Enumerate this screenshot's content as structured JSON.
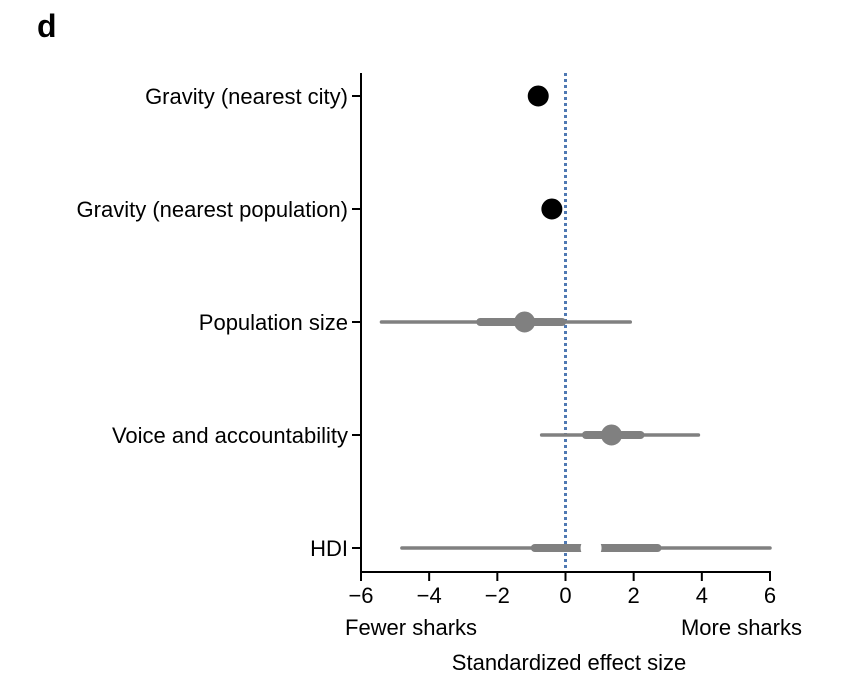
{
  "panel_label": "d",
  "chart_data": {
    "type": "forest",
    "xlabel": "Standardized effect size",
    "x_annotations": {
      "left": "Fewer sharks",
      "right": "More sharks"
    },
    "xlim": [
      -6,
      6
    ],
    "x_ticks": [
      -6,
      -4,
      -2,
      0,
      2,
      4,
      6
    ],
    "x_tick_labels": [
      "−6",
      "−4",
      "−2",
      "0",
      "2",
      "4",
      "6"
    ],
    "reference_line": 0,
    "reference_line_color": "#4f79b3",
    "rows": [
      {
        "label": "Gravity (nearest city)",
        "estimate": -0.8,
        "ci_inner": [
          -0.95,
          -0.65
        ],
        "ci_outer": [
          -1.0,
          -0.6
        ],
        "color": "#000000",
        "filled": true
      },
      {
        "label": "Gravity (nearest population)",
        "estimate": -0.4,
        "ci_inner": [
          -0.5,
          -0.3
        ],
        "ci_outer": [
          -0.55,
          -0.25
        ],
        "color": "#000000",
        "filled": true
      },
      {
        "label": "Population size",
        "estimate": -1.2,
        "ci_inner": [
          -2.5,
          -0.1
        ],
        "ci_outer": [
          -5.4,
          1.9
        ],
        "color": "#808080",
        "filled": true
      },
      {
        "label": "Voice and accountability",
        "estimate": 1.35,
        "ci_inner": [
          0.6,
          2.2
        ],
        "ci_outer": [
          -0.7,
          3.9
        ],
        "color": "#808080",
        "filled": true
      },
      {
        "label": "HDI",
        "estimate": 0.75,
        "ci_inner": [
          -0.9,
          2.7
        ],
        "ci_outer": [
          -4.8,
          6.0
        ],
        "color": "#808080",
        "filled": false
      }
    ]
  }
}
